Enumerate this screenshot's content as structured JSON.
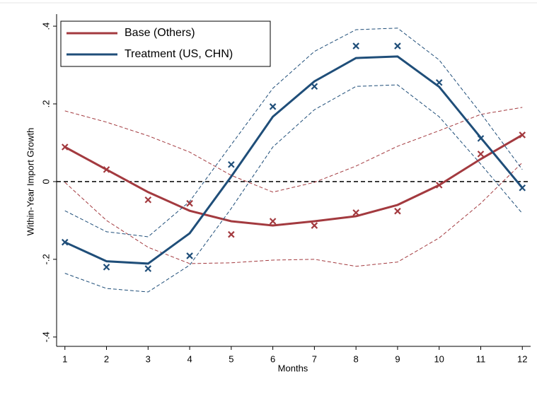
{
  "chart_data": {
    "type": "line",
    "x": [
      1,
      2,
      3,
      4,
      5,
      6,
      7,
      8,
      9,
      10,
      11,
      12
    ],
    "xlim": [
      0.8,
      12.2
    ],
    "xticks": [
      1,
      2,
      3,
      4,
      5,
      6,
      7,
      8,
      9,
      10,
      11,
      12
    ],
    "ylim": [
      -0.424,
      0.431
    ],
    "yticks": [
      {
        "value": 0.4,
        "label": ".4"
      },
      {
        "value": 0.2,
        "label": ".2"
      },
      0,
      {
        "value": -0.2,
        "label": "-.2"
      },
      {
        "value": -0.4,
        "label": "-.4"
      }
    ],
    "x_label": "Months",
    "y_label": "Within-Year Import Growth",
    "reference_line": 0,
    "legend": "top-left",
    "series": [
      {
        "name": "Base (Others)",
        "color": "#a33a3f",
        "values": [
          0.089,
          0.031,
          -0.027,
          -0.075,
          -0.102,
          -0.113,
          -0.102,
          -0.089,
          -0.06,
          -0.009,
          0.058,
          0.12
        ],
        "ci_upper": [
          0.182,
          0.153,
          0.118,
          0.076,
          0.016,
          -0.027,
          -0.002,
          0.04,
          0.091,
          0.131,
          0.173,
          0.191
        ],
        "ci_lower": [
          -0.002,
          -0.1,
          -0.169,
          -0.211,
          -0.209,
          -0.202,
          -0.2,
          -0.218,
          -0.207,
          -0.145,
          -0.056,
          0.049
        ],
        "markers": [
          0.089,
          0.031,
          -0.047,
          -0.056,
          -0.136,
          -0.102,
          -0.113,
          -0.08,
          -0.076,
          -0.009,
          0.071,
          0.12
        ]
      },
      {
        "name": "Treatment (US, CHN)",
        "color": "#1f4e79",
        "values": [
          -0.156,
          -0.205,
          -0.211,
          -0.133,
          0.013,
          0.167,
          0.258,
          0.318,
          0.322,
          0.244,
          0.113,
          -0.016
        ],
        "ci_upper": [
          -0.075,
          -0.129,
          -0.142,
          -0.051,
          0.095,
          0.24,
          0.335,
          0.391,
          0.395,
          0.313,
          0.176,
          0.031
        ],
        "ci_lower": [
          -0.236,
          -0.275,
          -0.284,
          -0.215,
          -0.069,
          0.089,
          0.185,
          0.245,
          0.249,
          0.167,
          0.045,
          -0.082
        ],
        "markers": [
          -0.156,
          -0.22,
          -0.224,
          -0.191,
          0.044,
          0.193,
          0.245,
          0.349,
          0.349,
          0.255,
          0.111,
          -0.016
        ]
      }
    ]
  }
}
